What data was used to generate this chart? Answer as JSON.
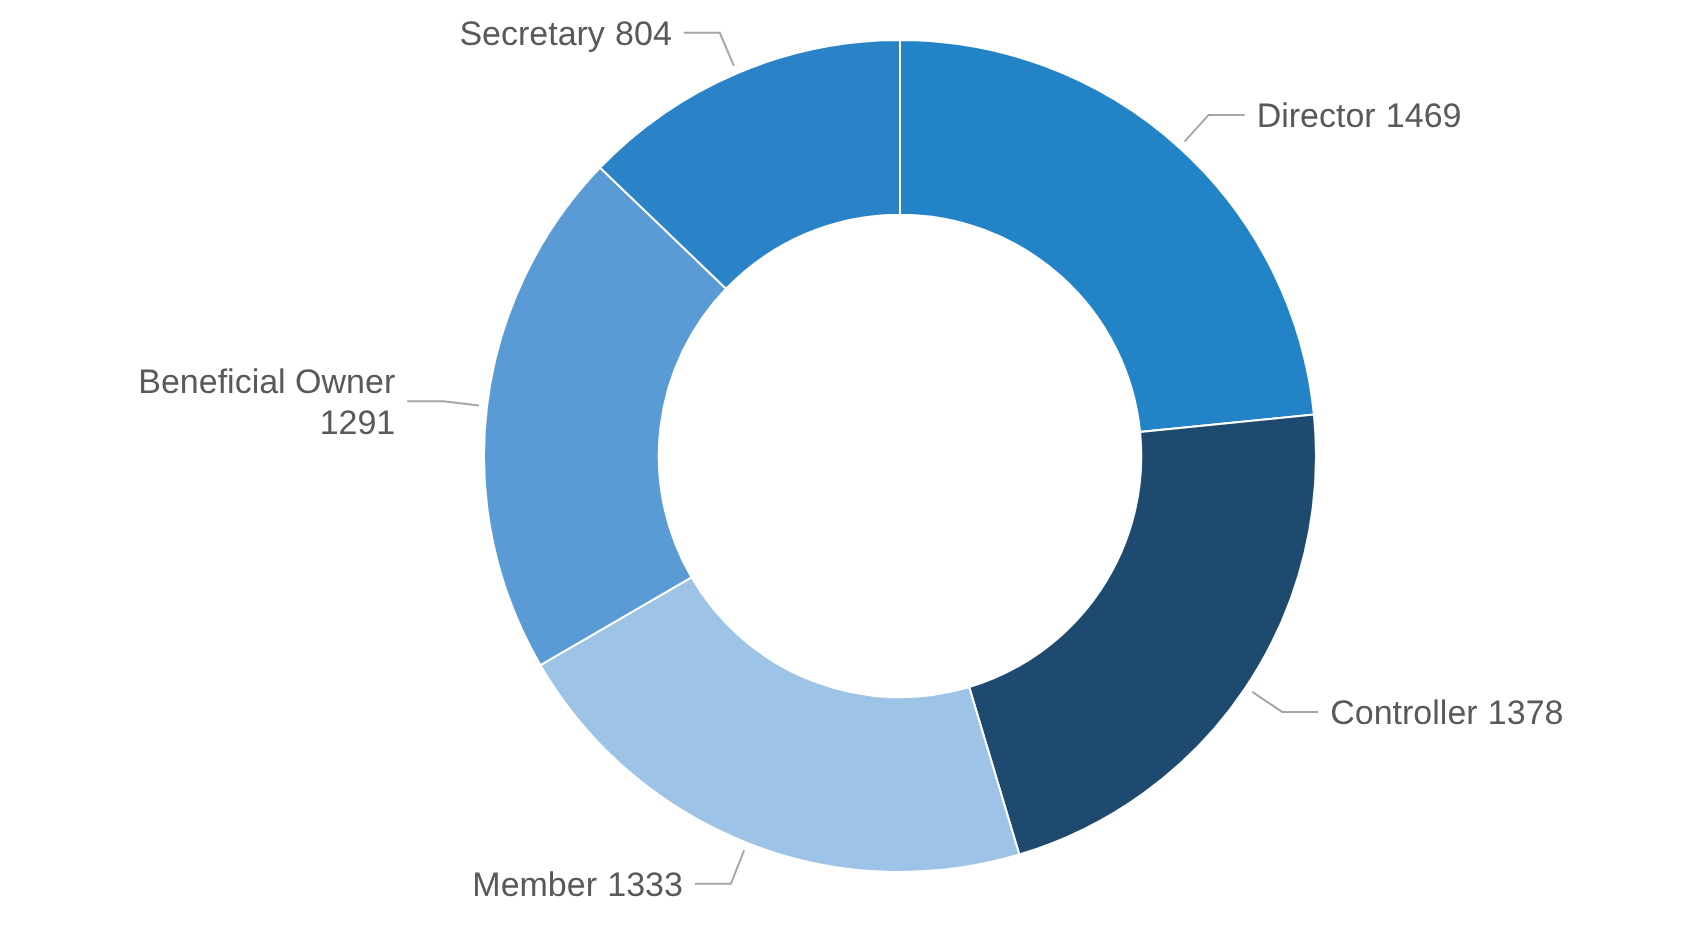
{
  "chart_data": {
    "type": "donut",
    "categories": [
      "Director",
      "Controller",
      "Member",
      "Beneficial Owner",
      "Secretary"
    ],
    "values": [
      1469,
      1378,
      1333,
      1291,
      804
    ],
    "colors": [
      "#2383c7",
      "#1f4a6f",
      "#9dc3e6",
      "#5b9bd5",
      "#2a82c7"
    ],
    "data_labels": true
  }
}
